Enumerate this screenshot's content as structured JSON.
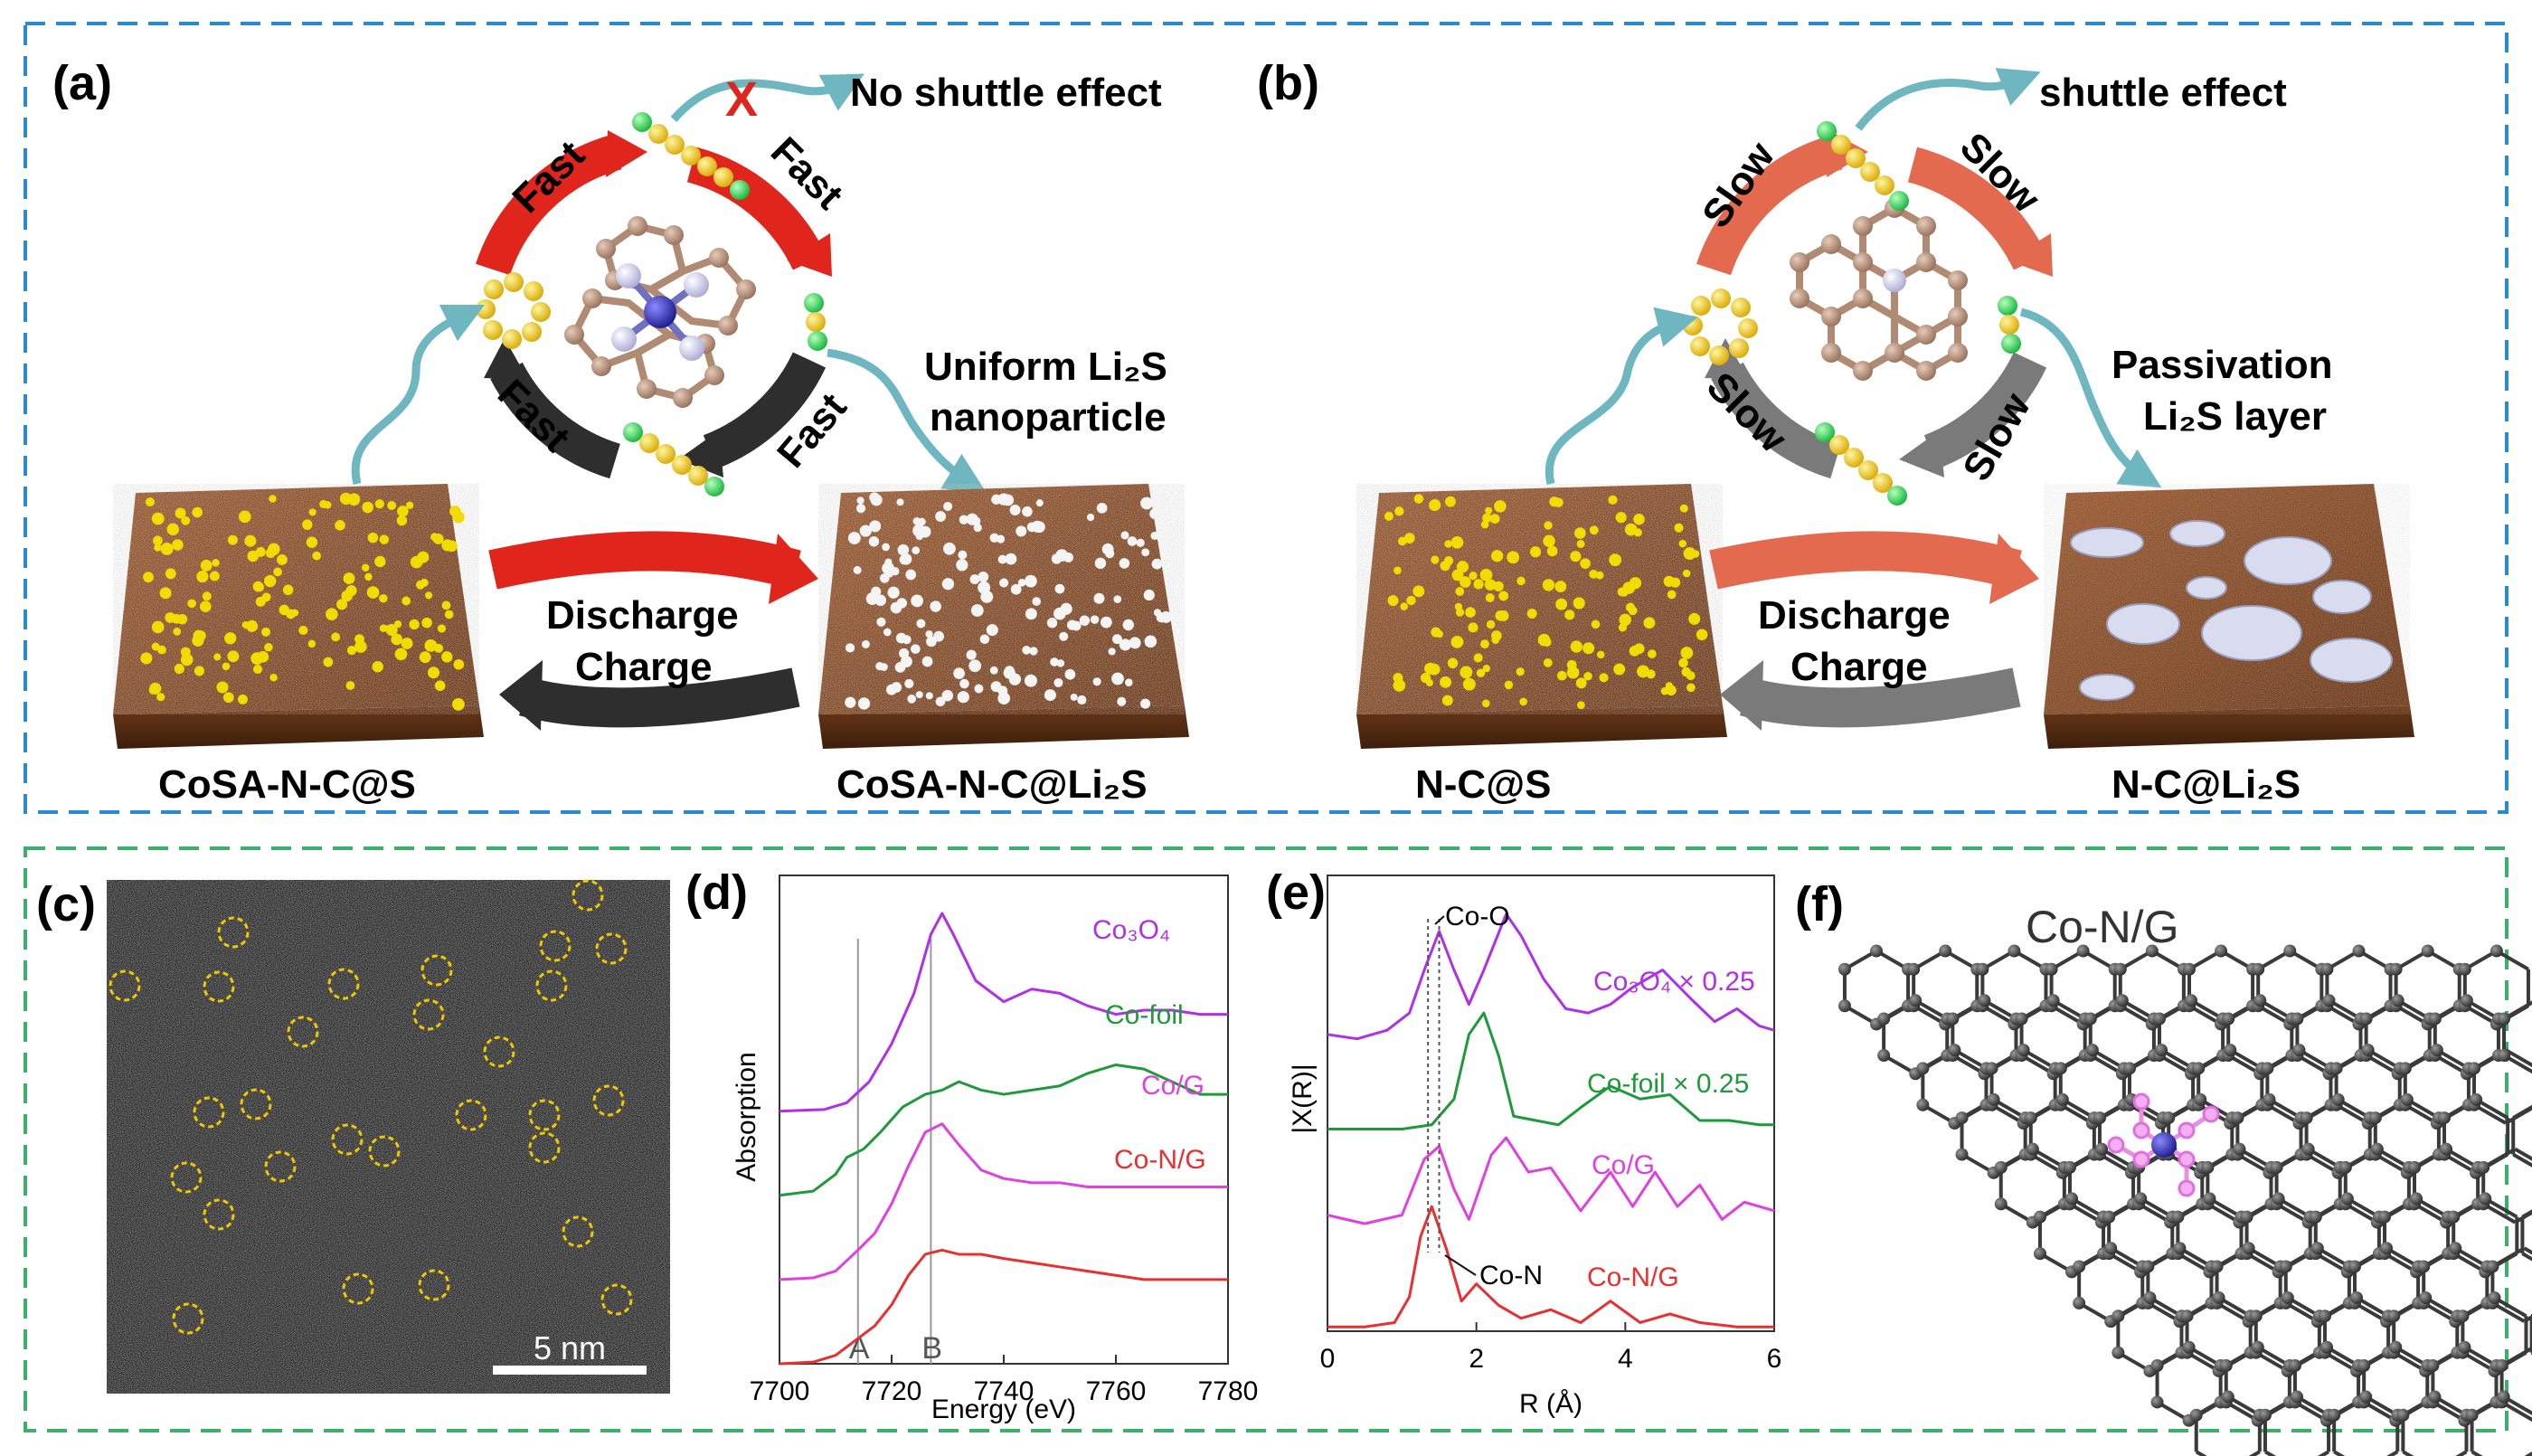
{
  "colors": {
    "top_border": "#2a8ad0",
    "bottom_border": "#3bb06a",
    "red_arrow": "#e0261c",
    "salmon_arrow": "#e46a4f",
    "dark_arrow": "#2e2e2e",
    "grey_arrow": "#7a7a7a",
    "teal_arrow": "#6fb7c0",
    "sulfur": "#f2c200",
    "lithium": "#27d14c",
    "carbon": "#b08a72",
    "nitrogen": "#c9c9e6",
    "cobalt": "#2a2aa8",
    "substrate": "#7a4424",
    "purple": "#b030e8",
    "green": "#1f9a3b",
    "magenta": "#e040e0",
    "red": "#e83030",
    "lattice": "#3a3a3a"
  },
  "panel_a": {
    "label": "(a)",
    "cycle_labels": [
      "Fast",
      "Fast",
      "Fast",
      "Fast"
    ],
    "shuttle_text": "No shuttle effect",
    "blocked_mark": "X",
    "product_text_line1": "Uniform Li₂S",
    "product_text_line2": "nanoparticle",
    "discharge": "Discharge",
    "charge": "Charge",
    "left_material": "CoSA-N-C@S",
    "right_material": "CoSA-N-C@Li₂S"
  },
  "panel_b": {
    "label": "(b)",
    "cycle_labels": [
      "Slow",
      "Slow",
      "Slow",
      "Slow"
    ],
    "shuttle_text": "shuttle effect",
    "product_text_line1": "Passivation",
    "product_text_line2": "Li₂S layer",
    "discharge": "Discharge",
    "charge": "Charge",
    "left_material": "N-C@S",
    "right_material": "N-C@Li₂S"
  },
  "panel_c": {
    "label": "(c)",
    "scale_bar": "5 nm"
  },
  "panel_f": {
    "label": "(f)",
    "title": "Co-N/G"
  },
  "chart_data": [
    {
      "panel": "(d)",
      "type": "line",
      "title": "",
      "xlabel": "Energy (eV)",
      "ylabel": "Absorption",
      "xlim": [
        7700,
        7780
      ],
      "xticks": [
        7700,
        7720,
        7740,
        7760,
        7780
      ],
      "markers": [
        {
          "label": "A",
          "x": 7714
        },
        {
          "label": "B",
          "x": 7727
        }
      ],
      "series": [
        {
          "name": "Co₃O₄",
          "color": "#b030e8",
          "offset": 3.0,
          "x": [
            7700,
            7708,
            7712,
            7716,
            7720,
            7724,
            7727,
            7729,
            7731,
            7735,
            7740,
            7745,
            7750,
            7755,
            7760,
            7765,
            7770,
            7775,
            7780
          ],
          "y": [
            0.0,
            0.02,
            0.1,
            0.35,
            0.8,
            1.4,
            2.1,
            2.35,
            2.1,
            1.55,
            1.3,
            1.45,
            1.4,
            1.25,
            1.15,
            1.2,
            1.2,
            1.15,
            1.15
          ]
        },
        {
          "name": "Co-foil",
          "color": "#1f9a3b",
          "offset": 2.0,
          "x": [
            7700,
            7706,
            7710,
            7712,
            7715,
            7718,
            7722,
            7726,
            7729,
            7732,
            7736,
            7740,
            7745,
            7750,
            7755,
            7760,
            7765,
            7770,
            7775,
            7780
          ],
          "y": [
            0.0,
            0.05,
            0.25,
            0.45,
            0.55,
            0.75,
            1.05,
            1.2,
            1.25,
            1.35,
            1.25,
            1.2,
            1.25,
            1.3,
            1.45,
            1.55,
            1.5,
            1.35,
            1.2,
            1.2
          ]
        },
        {
          "name": "Co/G",
          "color": "#e040e0",
          "offset": 1.0,
          "x": [
            7700,
            7706,
            7710,
            7714,
            7717,
            7720,
            7723,
            7726,
            7729,
            7732,
            7736,
            7740,
            7745,
            7750,
            7755,
            7760,
            7765,
            7770,
            7775,
            7780
          ],
          "y": [
            0.0,
            0.02,
            0.1,
            0.35,
            0.55,
            0.9,
            1.35,
            1.75,
            1.85,
            1.6,
            1.3,
            1.2,
            1.15,
            1.15,
            1.1,
            1.1,
            1.1,
            1.1,
            1.1,
            1.1
          ]
        },
        {
          "name": "Co-N/G",
          "color": "#e83030",
          "offset": 0.0,
          "x": [
            7700,
            7706,
            7710,
            7714,
            7717,
            7720,
            7723,
            7726,
            7729,
            7732,
            7736,
            7740,
            7745,
            7750,
            7755,
            7760,
            7765,
            7770,
            7775,
            7780
          ],
          "y": [
            0.0,
            0.02,
            0.1,
            0.3,
            0.45,
            0.7,
            1.05,
            1.3,
            1.35,
            1.3,
            1.3,
            1.25,
            1.2,
            1.15,
            1.1,
            1.05,
            1.0,
            1.0,
            1.0,
            1.0
          ]
        }
      ]
    },
    {
      "panel": "(e)",
      "type": "line",
      "title": "",
      "xlabel": "R (Å)",
      "ylabel": "|X(R)|",
      "xlim": [
        0,
        6
      ],
      "xticks": [
        0,
        2,
        4,
        6
      ],
      "annotations": [
        {
          "label": "Co-O",
          "x": 1.5
        },
        {
          "label": "Co-N",
          "x": 1.35
        }
      ],
      "series": [
        {
          "name": "Co₃O₄ × 0.25",
          "color": "#b030e8",
          "offset": 3.3,
          "x": [
            0,
            0.4,
            0.8,
            1.1,
            1.3,
            1.5,
            1.7,
            1.9,
            2.1,
            2.4,
            2.6,
            2.9,
            3.2,
            3.5,
            3.8,
            4.1,
            4.5,
            4.9,
            5.2,
            5.5,
            5.8,
            6.0
          ],
          "y": [
            0.15,
            0.1,
            0.2,
            0.4,
            0.9,
            1.35,
            0.9,
            0.5,
            0.9,
            1.55,
            1.3,
            0.8,
            0.45,
            0.4,
            0.5,
            0.7,
            0.9,
            0.55,
            0.3,
            0.45,
            0.25,
            0.2
          ]
        },
        {
          "name": "Co-foil × 0.25",
          "color": "#1f9a3b",
          "offset": 2.3,
          "x": [
            0,
            0.6,
            1.0,
            1.4,
            1.7,
            1.9,
            2.1,
            2.3,
            2.5,
            2.8,
            3.1,
            3.4,
            3.8,
            4.2,
            4.6,
            5.0,
            5.4,
            5.8,
            6.0
          ],
          "y": [
            0.05,
            0.05,
            0.05,
            0.1,
            0.4,
            1.15,
            1.4,
            0.9,
            0.2,
            0.15,
            0.1,
            0.3,
            0.55,
            0.4,
            0.45,
            0.15,
            0.15,
            0.1,
            0.1
          ]
        },
        {
          "name": "Co/G",
          "color": "#e040e0",
          "offset": 1.15,
          "x": [
            0,
            0.5,
            1.0,
            1.3,
            1.5,
            1.7,
            1.9,
            2.2,
            2.4,
            2.7,
            3.0,
            3.4,
            3.8,
            4.1,
            4.4,
            4.7,
            5.0,
            5.3,
            5.6,
            6.0
          ],
          "y": [
            0.2,
            0.1,
            0.2,
            0.85,
            1.0,
            0.5,
            0.15,
            0.9,
            1.1,
            0.7,
            0.75,
            0.25,
            0.7,
            0.3,
            0.7,
            0.3,
            0.55,
            0.15,
            0.35,
            0.25
          ]
        },
        {
          "name": "Co-N/G",
          "color": "#e83030",
          "offset": 0.0,
          "x": [
            0,
            0.5,
            0.9,
            1.1,
            1.25,
            1.4,
            1.6,
            1.8,
            2.0,
            2.3,
            2.6,
            3.0,
            3.4,
            3.8,
            4.2,
            4.6,
            5.0,
            5.5,
            6.0
          ],
          "y": [
            0.05,
            0.05,
            0.1,
            0.4,
            1.1,
            1.45,
            0.95,
            0.35,
            0.55,
            0.3,
            0.15,
            0.25,
            0.1,
            0.35,
            0.1,
            0.2,
            0.1,
            0.05,
            0.05
          ]
        }
      ]
    }
  ]
}
